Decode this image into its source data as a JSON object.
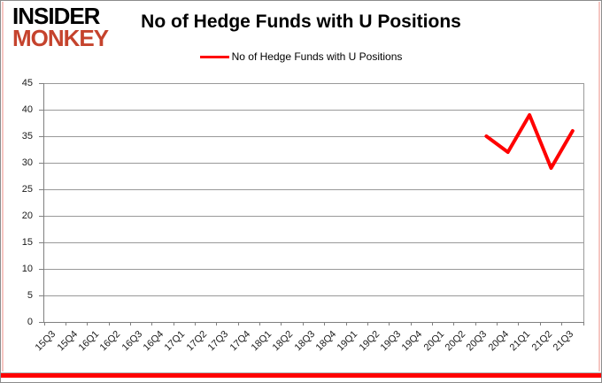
{
  "logo": {
    "line1": "INSIDER",
    "line2": "MONKEY"
  },
  "header": {
    "title": "No of Hedge Funds with U Positions"
  },
  "legend": {
    "label": "No of Hedge Funds with U Positions"
  },
  "colors": {
    "series_red": "#ff0000",
    "logo_red": "#c5432d",
    "bottom_bar_red": "#fe0000",
    "grid_gray": "#999999",
    "axis_gray": "#808080"
  },
  "chart_data": {
    "type": "line",
    "title": "No of Hedge Funds with U Positions",
    "categories": [
      "15Q3",
      "15Q4",
      "16Q1",
      "16Q2",
      "16Q3",
      "16Q4",
      "17Q1",
      "17Q2",
      "17Q3",
      "17Q4",
      "18Q1",
      "18Q2",
      "18Q3",
      "18Q4",
      "19Q1",
      "19Q2",
      "19Q3",
      "19Q4",
      "20Q1",
      "20Q2",
      "20Q3",
      "20Q4",
      "21Q1",
      "21Q2",
      "21Q3"
    ],
    "series": [
      {
        "name": "No of Hedge Funds with U Positions",
        "color": "#ff0000",
        "values": [
          null,
          null,
          null,
          null,
          null,
          null,
          null,
          null,
          null,
          null,
          null,
          null,
          null,
          null,
          null,
          null,
          null,
          null,
          null,
          null,
          35,
          32,
          39,
          29,
          36
        ]
      }
    ],
    "xlabel": "",
    "ylabel": "",
    "ylim": [
      0,
      45
    ],
    "ytick_step": 5,
    "grid": true,
    "legend_position": "top-center"
  }
}
